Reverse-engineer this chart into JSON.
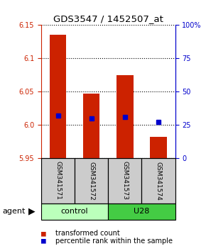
{
  "title": "GDS3547 / 1452507_at",
  "samples": [
    "GSM341571",
    "GSM341572",
    "GSM341573",
    "GSM341574"
  ],
  "bar_values": [
    6.135,
    6.047,
    6.075,
    5.982
  ],
  "bar_base": 5.95,
  "percentile_values": [
    32,
    30,
    31,
    27
  ],
  "ylim_left": [
    5.95,
    6.15
  ],
  "ylim_right": [
    0,
    100
  ],
  "yticks_left": [
    5.95,
    6.0,
    6.05,
    6.1,
    6.15
  ],
  "yticks_right": [
    0,
    25,
    50,
    75,
    100
  ],
  "ytick_labels_right": [
    "0",
    "25",
    "50",
    "75",
    "100%"
  ],
  "bar_color": "#cc2200",
  "blue_color": "#0000cc",
  "groups": [
    {
      "label": "control",
      "indices": [
        0,
        1
      ],
      "color": "#bbffbb"
    },
    {
      "label": "U28",
      "indices": [
        2,
        3
      ],
      "color": "#44cc44"
    }
  ],
  "legend_items": [
    {
      "label": "transformed count",
      "color": "#cc2200"
    },
    {
      "label": "percentile rank within the sample",
      "color": "#0000cc"
    }
  ],
  "agent_label": "agent",
  "sample_bg_color": "#cccccc",
  "bar_width": 0.5,
  "figsize": [
    2.9,
    3.54
  ],
  "dpi": 100
}
